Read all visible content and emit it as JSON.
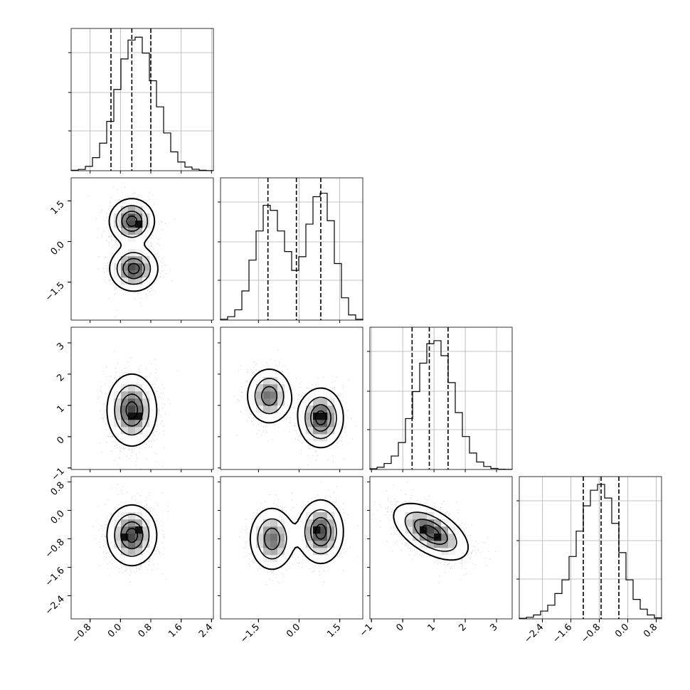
{
  "chart_data": {
    "type": "corner",
    "grid": true,
    "dims": 4,
    "params": [
      {
        "range": [
          -1.3,
          2.45
        ],
        "ticks": [
          {
            "v": -0.8,
            "label": "−0.8"
          },
          {
            "v": 0.0,
            "label": "0.0"
          },
          {
            "v": 0.8,
            "label": "0.8"
          },
          {
            "v": 1.6,
            "label": "1.6"
          },
          {
            "v": 2.4,
            "label": "2.4"
          }
        ],
        "quantiles": [
          -0.25,
          0.3,
          0.8
        ],
        "hist": {
          "edges_start": -1.3,
          "bin_width": 0.1875,
          "values": [
            0.3,
            0.9,
            3.0,
            9.0,
            19.0,
            34.0,
            56.0,
            77.0,
            90.0,
            92.0,
            81.0,
            62.0,
            44.0,
            26.0,
            13.0,
            6.0,
            2.5,
            1.0,
            0.3,
            0.1
          ],
          "ymax": 98
        }
      },
      {
        "range": [
          -2.9,
          2.35
        ],
        "ticks": [
          {
            "v": -1.5,
            "label": "−1.5"
          },
          {
            "v": 0.0,
            "label": "0.0"
          },
          {
            "v": 1.5,
            "label": "1.5"
          }
        ],
        "quantiles": [
          -1.15,
          -0.1,
          0.8
        ],
        "hist": {
          "edges_start": -2.9,
          "bin_width": 0.2625,
          "values": [
            0.5,
            2.0,
            6.0,
            17.0,
            35.0,
            52.0,
            67.0,
            64.0,
            52.0,
            40.0,
            29.0,
            37.0,
            56.0,
            72.0,
            74.0,
            58.0,
            33.0,
            13.0,
            3.0,
            0.5
          ],
          "ymax": 83
        }
      },
      {
        "range": [
          -1.05,
          3.5
        ],
        "ticks": [
          {
            "v": -1,
            "label": "−1"
          },
          {
            "v": 0,
            "label": "0"
          },
          {
            "v": 1,
            "label": "1"
          },
          {
            "v": 2,
            "label": "2"
          },
          {
            "v": 3,
            "label": "3"
          }
        ],
        "yticks": [
          {
            "v": -1,
            "label": "−1"
          },
          {
            "v": 0,
            "label": "0"
          },
          {
            "v": 1,
            "label": "1"
          },
          {
            "v": 2,
            "label": "2"
          },
          {
            "v": 3,
            "label": "3"
          }
        ],
        "quantiles": [
          0.3,
          0.85,
          1.45
        ],
        "hist": {
          "edges_start": -1.05,
          "bin_width": 0.2275,
          "values": [
            0.5,
            1.5,
            4.0,
            9.0,
            18.0,
            34.0,
            52.0,
            71.0,
            84.0,
            86.0,
            76.0,
            58.0,
            38.0,
            22.0,
            11.0,
            5.0,
            2.0,
            0.7,
            0.2,
            0.1
          ],
          "ymax": 95
        }
      },
      {
        "range": [
          -3.05,
          0.95
        ],
        "ticks": [
          {
            "v": -2.4,
            "label": "−2.4"
          },
          {
            "v": -1.6,
            "label": "−1.6"
          },
          {
            "v": -0.8,
            "label": "−0.8"
          },
          {
            "v": 0.0,
            "label": "0.0"
          },
          {
            "v": 0.8,
            "label": "0.8"
          }
        ],
        "quantiles": [
          -1.25,
          -0.75,
          -0.25
        ],
        "hist": {
          "edges_start": -3.05,
          "bin_width": 0.2,
          "values": [
            0.3,
            0.8,
            2.0,
            4.0,
            7.0,
            13.0,
            20.0,
            32.0,
            45.0,
            58.0,
            66.0,
            69.0,
            62.0,
            49.0,
            34.0,
            20.0,
            10.0,
            5.0,
            2.0,
            0.5
          ],
          "ymax": 73
        }
      }
    ],
    "pairs": [
      {
        "row": 1,
        "col": 0,
        "blobs": [
          {
            "mx": 0.3,
            "my": 0.75,
            "sx": 0.3,
            "sy": 0.42,
            "w": 1.0
          },
          {
            "mx": 0.35,
            "my": -1.0,
            "sx": 0.32,
            "sy": 0.42,
            "w": 1.0
          }
        ],
        "dense_bins": [
          [
            0.3,
            0.75
          ],
          [
            0.4,
            0.6
          ],
          [
            0.2,
            0.5
          ],
          [
            0.4,
            -0.9
          ],
          [
            0.2,
            -1.0
          ],
          [
            0.5,
            -1.1
          ],
          [
            0.3,
            -0.75
          ]
        ],
        "darkest": [
          [
            0.4,
            0.6
          ]
        ]
      },
      {
        "row": 2,
        "col": 0,
        "blobs": [
          {
            "mx": 0.3,
            "my": 0.85,
            "sx": 0.33,
            "sy": 0.58,
            "w": 1.0
          }
        ],
        "dense_bins": [
          [
            0.3,
            0.75
          ],
          [
            0.5,
            0.75
          ],
          [
            0.2,
            0.5
          ],
          [
            0.45,
            0.5
          ],
          [
            0.2,
            1.0
          ],
          [
            0.45,
            1.1
          ]
        ],
        "darkest": [
          [
            0.3,
            0.75
          ],
          [
            0.5,
            0.75
          ]
        ]
      },
      {
        "row": 2,
        "col": 1,
        "blobs": [
          {
            "mx": -1.1,
            "my": 1.3,
            "sx": 0.42,
            "sy": 0.45,
            "w": 0.85
          },
          {
            "mx": 0.8,
            "my": 0.6,
            "sx": 0.42,
            "sy": 0.48,
            "w": 1.0
          }
        ],
        "dense_bins": [
          [
            -1.1,
            1.3
          ],
          [
            -1.0,
            1.0
          ],
          [
            0.8,
            0.6
          ],
          [
            0.6,
            0.5
          ],
          [
            1.0,
            0.75
          ],
          [
            0.8,
            0.35
          ]
        ],
        "darkest": [
          [
            0.8,
            0.6
          ],
          [
            0.55,
            0.55
          ]
        ]
      },
      {
        "row": 3,
        "col": 0,
        "blobs": [
          {
            "mx": 0.3,
            "my": -0.7,
            "sx": 0.33,
            "sy": 0.43,
            "w": 1.0
          }
        ],
        "dense_bins": [
          [
            0.3,
            -0.7
          ],
          [
            0.5,
            -0.55
          ],
          [
            0.1,
            -0.7
          ],
          [
            0.5,
            -0.9
          ],
          [
            0.3,
            -0.95
          ]
        ],
        "darkest": [
          [
            0.1,
            -0.7
          ],
          [
            0.5,
            -0.5
          ]
        ]
      },
      {
        "row": 3,
        "col": 1,
        "blobs": [
          {
            "mx": -1.0,
            "my": -0.8,
            "sx": 0.42,
            "sy": 0.45,
            "w": 0.85
          },
          {
            "mx": 0.8,
            "my": -0.6,
            "sx": 0.42,
            "sy": 0.45,
            "w": 1.0
          }
        ],
        "dense_bins": [
          [
            -1.0,
            -0.8
          ],
          [
            0.8,
            -0.5
          ],
          [
            0.8,
            -0.8
          ],
          [
            0.6,
            -0.7
          ]
        ],
        "darkest": [
          [
            0.75,
            -0.5
          ]
        ]
      },
      {
        "row": 3,
        "col": 2,
        "blobs": [
          {
            "mx": 0.9,
            "my": -0.6,
            "sx": 0.6,
            "sy": 0.4,
            "rho": -0.55,
            "w": 1.0
          }
        ],
        "dense_bins": [
          [
            0.6,
            -0.55
          ],
          [
            0.85,
            -0.7
          ],
          [
            1.15,
            -0.55
          ],
          [
            0.6,
            -0.3
          ],
          [
            1.1,
            -0.9
          ]
        ],
        "darkest": [
          [
            0.6,
            -0.5
          ],
          [
            1.15,
            -0.65
          ]
        ]
      }
    ]
  }
}
